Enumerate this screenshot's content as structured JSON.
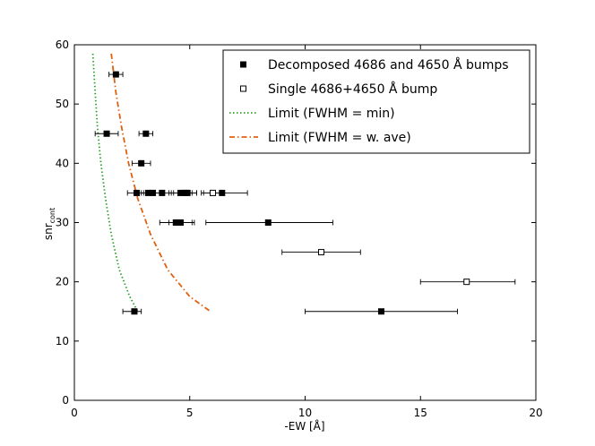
{
  "chart_data": {
    "type": "scatter",
    "xlabel": "-EW [Å]",
    "ylabel_main": "snr",
    "ylabel_sub": "cont",
    "xlim": [
      0,
      20
    ],
    "ylim": [
      0,
      60
    ],
    "xticks": [
      0,
      5,
      10,
      15,
      20
    ],
    "yticks": [
      0,
      10,
      20,
      30,
      40,
      50,
      60
    ],
    "grid": false,
    "legend_position": "top-right",
    "series": [
      {
        "name": "Decomposed 4686 and 4650 Å bumps",
        "marker": "filled-square",
        "color": "#000000",
        "points": [
          {
            "x": 1.8,
            "y": 55,
            "xerr_low": 1.5,
            "xerr_high": 2.1
          },
          {
            "x": 1.4,
            "y": 45,
            "xerr_low": 0.9,
            "xerr_high": 1.9
          },
          {
            "x": 3.1,
            "y": 45,
            "xerr_low": 2.8,
            "xerr_high": 3.4
          },
          {
            "x": 2.9,
            "y": 40,
            "xerr_low": 2.5,
            "xerr_high": 3.3
          },
          {
            "x": 2.7,
            "y": 35,
            "xerr_low": 2.3,
            "xerr_high": 3.0
          },
          {
            "x": 3.2,
            "y": 35,
            "xerr_low": 2.9,
            "xerr_high": 3.5
          },
          {
            "x": 3.4,
            "y": 35,
            "xerr_low": 3.1,
            "xerr_high": 3.7
          },
          {
            "x": 3.8,
            "y": 35,
            "xerr_low": 3.4,
            "xerr_high": 4.2
          },
          {
            "x": 4.6,
            "y": 35,
            "xerr_low": 4.1,
            "xerr_high": 5.1
          },
          {
            "x": 4.8,
            "y": 35,
            "xerr_low": 4.3,
            "xerr_high": 5.3
          },
          {
            "x": 4.9,
            "y": 35,
            "xerr_low": 4.5,
            "xerr_high": 5.3
          },
          {
            "x": 6.4,
            "y": 35,
            "xerr_low": 5.6,
            "xerr_high": 7.5
          },
          {
            "x": 4.4,
            "y": 30,
            "xerr_low": 3.7,
            "xerr_high": 5.1
          },
          {
            "x": 4.6,
            "y": 30,
            "xerr_low": 4.1,
            "xerr_high": 5.2
          },
          {
            "x": 8.4,
            "y": 30,
            "xerr_low": 5.7,
            "xerr_high": 11.2
          },
          {
            "x": 2.6,
            "y": 15,
            "xerr_low": 2.1,
            "xerr_high": 2.9
          },
          {
            "x": 13.3,
            "y": 15,
            "xerr_low": 10.0,
            "xerr_high": 16.6
          }
        ]
      },
      {
        "name": "Single 4686+4650 Å bump",
        "marker": "open-square",
        "color": "#000000",
        "points": [
          {
            "x": 6.0,
            "y": 35,
            "xerr_low": 5.5,
            "xerr_high": 6.5
          },
          {
            "x": 10.7,
            "y": 25,
            "xerr_low": 9.0,
            "xerr_high": 12.4
          },
          {
            "x": 17.0,
            "y": 20,
            "xerr_low": 15.0,
            "xerr_high": 19.1
          }
        ]
      },
      {
        "name": "Limit (FWHM = min)",
        "line": "dotted",
        "color": "#2ca02c",
        "points": [
          {
            "x": 0.8,
            "y": 58.5
          },
          {
            "x": 0.9,
            "y": 52
          },
          {
            "x": 1.0,
            "y": 46
          },
          {
            "x": 1.15,
            "y": 40
          },
          {
            "x": 1.35,
            "y": 34
          },
          {
            "x": 1.6,
            "y": 28
          },
          {
            "x": 1.95,
            "y": 22
          },
          {
            "x": 2.4,
            "y": 17.5
          },
          {
            "x": 2.75,
            "y": 15
          }
        ]
      },
      {
        "name": "Limit (FWHM = w. ave)",
        "line": "dash-dot",
        "color": "#e06010",
        "points": [
          {
            "x": 1.6,
            "y": 58.5
          },
          {
            "x": 1.8,
            "y": 52
          },
          {
            "x": 2.05,
            "y": 46
          },
          {
            "x": 2.35,
            "y": 40
          },
          {
            "x": 2.75,
            "y": 34
          },
          {
            "x": 3.3,
            "y": 28
          },
          {
            "x": 4.05,
            "y": 22
          },
          {
            "x": 5.0,
            "y": 17.5
          },
          {
            "x": 5.9,
            "y": 15
          }
        ]
      }
    ]
  }
}
